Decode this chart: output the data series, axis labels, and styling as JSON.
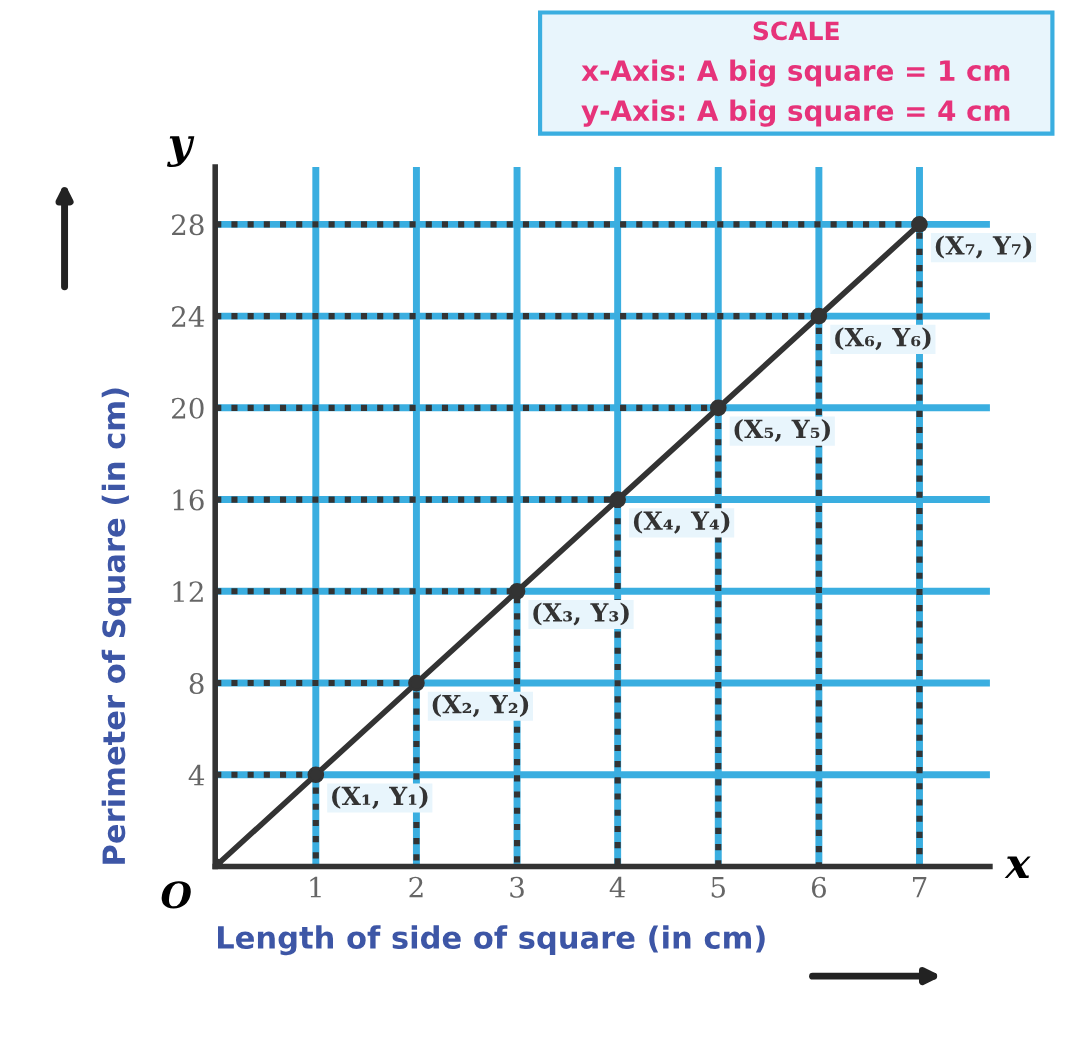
{
  "chart_data": {
    "type": "line",
    "xlabel": "Length of side of square (in cm)",
    "ylabel": "Perimeter of Square (in cm)",
    "x": [
      0,
      1,
      2,
      3,
      4,
      5,
      6,
      7
    ],
    "series": [
      {
        "color": "#333333",
        "values": [
          0,
          4,
          8,
          12,
          16,
          20,
          24,
          28
        ]
      },
      {
        "color": "#333333",
        "line_style": "dotted",
        "marker": "none",
        "x": [
          0,
          1,
          1
        ],
        "values": [
          4,
          4,
          0
        ]
      },
      {
        "color": "#333333",
        "line_style": "dotted",
        "marker": "none",
        "x": [
          0,
          2,
          2
        ],
        "values": [
          8,
          8,
          0
        ]
      },
      {
        "color": "#333333",
        "line_style": "dotted",
        "marker": "none",
        "x": [
          0,
          3,
          3
        ],
        "values": [
          12,
          12,
          0
        ]
      },
      {
        "color": "#333333",
        "line_style": "dotted",
        "marker": "none",
        "x": [
          0,
          4,
          4
        ],
        "values": [
          16,
          16,
          0
        ]
      },
      {
        "color": "#333333",
        "line_style": "dotted",
        "marker": "none",
        "x": [
          0,
          5,
          5
        ],
        "values": [
          20,
          20,
          0
        ]
      },
      {
        "color": "#333333",
        "line_style": "dotted",
        "marker": "none",
        "x": [
          0,
          6,
          6
        ],
        "values": [
          24,
          24,
          0
        ]
      },
      {
        "color": "#333333",
        "line_style": "dotted",
        "marker": "none",
        "x": [
          0,
          7,
          7
        ],
        "values": [
          28,
          28,
          0
        ]
      }
    ],
    "xlim": [
      0,
      7.7
    ],
    "ylim": [
      0,
      30.5
    ],
    "xticks": [
      1,
      2,
      3,
      4,
      5,
      6,
      7
    ],
    "yticks": [
      4,
      8,
      12,
      16,
      20,
      24,
      28
    ],
    "grid": true,
    "marker": "circle",
    "line_style": "solid",
    "annotations": [
      {
        "text": "(X₁, Y₁)",
        "x": 1,
        "y": 4
      },
      {
        "text": "(X₂, Y₂)",
        "x": 2,
        "y": 8
      },
      {
        "text": "(X₃, Y₃)",
        "x": 3,
        "y": 12
      },
      {
        "text": "(X₄, Y₄)",
        "x": 4,
        "y": 16
      },
      {
        "text": "(X₅, Y₅)",
        "x": 5,
        "y": 20
      },
      {
        "text": "(X₆, Y₆)",
        "x": 6,
        "y": 24
      },
      {
        "text": "(X₇, Y₇)",
        "x": 7,
        "y": 28
      },
      "O",
      "x",
      "y",
      "SCALE",
      "x-Axis: A big square = 1 cm",
      "y-Axis: A big square = 4 cm"
    ]
  }
}
